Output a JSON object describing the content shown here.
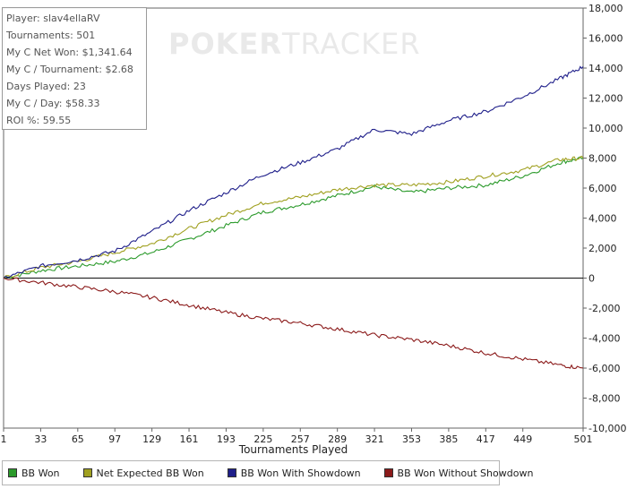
{
  "chart_data": {
    "type": "line",
    "xlabel": "Tournaments Played",
    "ylabel": "",
    "xlim": [
      1,
      501
    ],
    "ylim": [
      -10000,
      18000
    ],
    "x_ticks": [
      1,
      33,
      65,
      97,
      129,
      161,
      193,
      225,
      257,
      289,
      321,
      353,
      385,
      417,
      449,
      501
    ],
    "y_ticks": [
      18000,
      16000,
      14000,
      12000,
      10000,
      8000,
      6000,
      4000,
      2000,
      0,
      -2000,
      -4000,
      -6000,
      -8000,
      -10000
    ],
    "y_tick_labels": [
      "18,000",
      "16,000",
      "14,000",
      "12,000",
      "10,000",
      "8,000",
      "6,000",
      "4,000",
      "2,000",
      "0",
      "-2,000",
      "-4,000",
      "-6,000",
      "-8,000",
      "-10,000"
    ],
    "grid": false,
    "legend_position": "bottom",
    "series": [
      {
        "name": "BB Won",
        "color": "#2b9a2b",
        "x": [
          1,
          33,
          65,
          97,
          129,
          161,
          193,
          225,
          257,
          289,
          321,
          353,
          385,
          417,
          449,
          481,
          501
        ],
        "values": [
          0,
          500,
          800,
          1100,
          1700,
          2600,
          3500,
          4400,
          4900,
          5500,
          6100,
          5700,
          6000,
          6200,
          6800,
          7700,
          8000
        ]
      },
      {
        "name": "Net Expected BB Won",
        "color": "#a0a020",
        "x": [
          1,
          33,
          65,
          97,
          129,
          161,
          193,
          225,
          257,
          289,
          321,
          353,
          385,
          417,
          449,
          481,
          501
        ],
        "values": [
          0,
          700,
          1100,
          1700,
          2300,
          3300,
          4200,
          5000,
          5400,
          5900,
          6200,
          6200,
          6400,
          6800,
          7200,
          7900,
          8000
        ]
      },
      {
        "name": "BB Won With Showdown",
        "color": "#1f1f8a",
        "x": [
          1,
          33,
          65,
          97,
          129,
          161,
          193,
          225,
          257,
          289,
          321,
          353,
          385,
          417,
          449,
          481,
          501
        ],
        "values": [
          0,
          800,
          1200,
          1800,
          3100,
          4500,
          5700,
          6900,
          7700,
          8600,
          9900,
          9600,
          10500,
          11100,
          12100,
          13300,
          14100
        ]
      },
      {
        "name": "BB Won Without Showdown",
        "color": "#8b1a1a",
        "x": [
          1,
          33,
          65,
          97,
          129,
          161,
          193,
          225,
          257,
          289,
          321,
          353,
          385,
          417,
          449,
          481,
          501
        ],
        "values": [
          0,
          -300,
          -600,
          -900,
          -1300,
          -1800,
          -2300,
          -2700,
          -3000,
          -3400,
          -3800,
          -4100,
          -4500,
          -5000,
          -5400,
          -5800,
          -6000
        ]
      }
    ]
  },
  "info_box": {
    "player": "Player: slav4ellaRV",
    "tournaments": "Tournaments: 501",
    "net_won": "My C Net Won: $1,341.64",
    "per_tournament": "My C / Tournament: $2.68",
    "days_played": "Days Played: 23",
    "per_day": "My C / Day: $58.33",
    "roi": "ROI %: 59.55"
  },
  "watermark": {
    "part1": "POKER",
    "part2": "TRACKER"
  },
  "legend": {
    "items": [
      {
        "label": "BB Won",
        "color": "#2b9a2b"
      },
      {
        "label": "Net Expected BB Won",
        "color": "#a0a020"
      },
      {
        "label": "BB Won With Showdown",
        "color": "#1f1f8a"
      },
      {
        "label": "BB Won Without Showdown",
        "color": "#8b1a1a"
      }
    ]
  }
}
